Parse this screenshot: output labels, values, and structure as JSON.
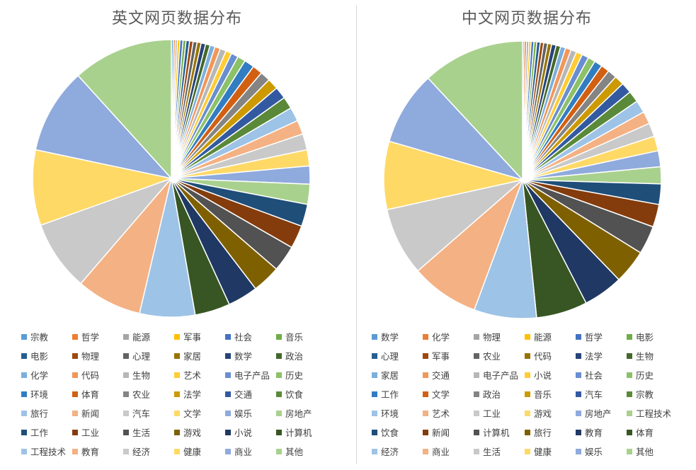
{
  "chart_data": [
    {
      "type": "pie",
      "title": "英文网页数据分布",
      "slices": [
        {
          "label": "宗教",
          "value": 0.2,
          "color": "#5B9BD5"
        },
        {
          "label": "哲学",
          "value": 0.2,
          "color": "#ED7D31"
        },
        {
          "label": "能源",
          "value": 0.2,
          "color": "#A5A5A5"
        },
        {
          "label": "军事",
          "value": 0.25,
          "color": "#FFC000"
        },
        {
          "label": "社会",
          "value": 0.3,
          "color": "#4472C4"
        },
        {
          "label": "音乐",
          "value": 0.3,
          "color": "#70AD47"
        },
        {
          "label": "电影",
          "value": 0.35,
          "color": "#255E91"
        },
        {
          "label": "物理",
          "value": 0.35,
          "color": "#9E480E"
        },
        {
          "label": "心理",
          "value": 0.4,
          "color": "#636363"
        },
        {
          "label": "家居",
          "value": 0.4,
          "color": "#997300"
        },
        {
          "label": "数学",
          "value": 0.45,
          "color": "#264478"
        },
        {
          "label": "政治",
          "value": 0.45,
          "color": "#43682B"
        },
        {
          "label": "化学",
          "value": 0.5,
          "color": "#7CAFDD"
        },
        {
          "label": "代码",
          "value": 0.55,
          "color": "#F1975A"
        },
        {
          "label": "生物",
          "value": 0.6,
          "color": "#B7B7B7"
        },
        {
          "label": "艺术",
          "value": 0.6,
          "color": "#FFCD33"
        },
        {
          "label": "电子产品",
          "value": 0.7,
          "color": "#698ED0"
        },
        {
          "label": "历史",
          "value": 0.8,
          "color": "#8CC168"
        },
        {
          "label": "环境",
          "value": 1.0,
          "color": "#327DC2"
        },
        {
          "label": "体育",
          "value": 1.0,
          "color": "#D26012"
        },
        {
          "label": "农业",
          "value": 1.0,
          "color": "#848484"
        },
        {
          "label": "法学",
          "value": 1.1,
          "color": "#CC9A00"
        },
        {
          "label": "交通",
          "value": 1.2,
          "color": "#335AA1"
        },
        {
          "label": "饮食",
          "value": 1.2,
          "color": "#5A8A39"
        },
        {
          "label": "旅行",
          "value": 1.4,
          "color": "#9DC3E6"
        },
        {
          "label": "新闻",
          "value": 1.4,
          "color": "#F4B183"
        },
        {
          "label": "汽车",
          "value": 1.6,
          "color": "#C9C9C9"
        },
        {
          "label": "文学",
          "value": 1.6,
          "color": "#FFD966"
        },
        {
          "label": "娱乐",
          "value": 1.8,
          "color": "#8FAADC"
        },
        {
          "label": "房地产",
          "value": 2.0,
          "color": "#A9D18E"
        },
        {
          "label": "工作",
          "value": 2.2,
          "color": "#1F4E79"
        },
        {
          "label": "工业",
          "value": 2.3,
          "color": "#843C0C"
        },
        {
          "label": "生活",
          "value": 2.6,
          "color": "#525252"
        },
        {
          "label": "游戏",
          "value": 2.8,
          "color": "#7F6000"
        },
        {
          "label": "小说",
          "value": 3.0,
          "color": "#203864"
        },
        {
          "label": "计算机",
          "value": 3.5,
          "color": "#375623"
        },
        {
          "label": "工程技术",
          "value": 5.5,
          "color": "#9DC3E6"
        },
        {
          "label": "教育",
          "value": 6.5,
          "color": "#F4B183"
        },
        {
          "label": "经济",
          "value": 7.0,
          "color": "#C9C9C9"
        },
        {
          "label": "健康",
          "value": 7.5,
          "color": "#FFD966"
        },
        {
          "label": "商业",
          "value": 8.5,
          "color": "#8FAADC"
        },
        {
          "label": "其他",
          "value": 10.0,
          "color": "#A9D18E"
        }
      ]
    },
    {
      "type": "pie",
      "title": "中文网页数据分布",
      "slices": [
        {
          "label": "数学",
          "value": 0.15,
          "color": "#5B9BD5"
        },
        {
          "label": "化学",
          "value": 0.2,
          "color": "#ED7D31"
        },
        {
          "label": "物理",
          "value": 0.2,
          "color": "#A5A5A5"
        },
        {
          "label": "能源",
          "value": 0.2,
          "color": "#FFC000"
        },
        {
          "label": "哲学",
          "value": 0.25,
          "color": "#4472C4"
        },
        {
          "label": "电影",
          "value": 0.25,
          "color": "#70AD47"
        },
        {
          "label": "心理",
          "value": 0.3,
          "color": "#255E91"
        },
        {
          "label": "军事",
          "value": 0.3,
          "color": "#9E480E"
        },
        {
          "label": "农业",
          "value": 0.35,
          "color": "#636363"
        },
        {
          "label": "代码",
          "value": 0.35,
          "color": "#997300"
        },
        {
          "label": "法学",
          "value": 0.4,
          "color": "#264478"
        },
        {
          "label": "生物",
          "value": 0.4,
          "color": "#43682B"
        },
        {
          "label": "家居",
          "value": 0.45,
          "color": "#7CAFDD"
        },
        {
          "label": "交通",
          "value": 0.5,
          "color": "#F1975A"
        },
        {
          "label": "电子产品",
          "value": 0.5,
          "color": "#B7B7B7"
        },
        {
          "label": "小说",
          "value": 0.55,
          "color": "#FFCD33"
        },
        {
          "label": "社会",
          "value": 0.6,
          "color": "#698ED0"
        },
        {
          "label": "历史",
          "value": 0.65,
          "color": "#8CC168"
        },
        {
          "label": "工作",
          "value": 0.7,
          "color": "#327DC2"
        },
        {
          "label": "文学",
          "value": 0.75,
          "color": "#D26012"
        },
        {
          "label": "政治",
          "value": 0.8,
          "color": "#848484"
        },
        {
          "label": "音乐",
          "value": 0.85,
          "color": "#CC9A00"
        },
        {
          "label": "汽车",
          "value": 0.95,
          "color": "#335AA1"
        },
        {
          "label": "宗教",
          "value": 1.0,
          "color": "#5A8A39"
        },
        {
          "label": "环境",
          "value": 1.1,
          "color": "#9DC3E6"
        },
        {
          "label": "艺术",
          "value": 1.1,
          "color": "#F4B183"
        },
        {
          "label": "工业",
          "value": 1.2,
          "color": "#C9C9C9"
        },
        {
          "label": "游戏",
          "value": 1.3,
          "color": "#FFD966"
        },
        {
          "label": "房地产",
          "value": 1.4,
          "color": "#8FAADC"
        },
        {
          "label": "工程技术",
          "value": 1.5,
          "color": "#A9D18E"
        },
        {
          "label": "饮食",
          "value": 1.8,
          "color": "#1F4E79"
        },
        {
          "label": "新闻",
          "value": 2.0,
          "color": "#843C0C"
        },
        {
          "label": "计算机",
          "value": 2.5,
          "color": "#525252"
        },
        {
          "label": "旅行",
          "value": 3.0,
          "color": "#7F6000"
        },
        {
          "label": "教育",
          "value": 3.5,
          "color": "#203864"
        },
        {
          "label": "体育",
          "value": 4.5,
          "color": "#375623"
        },
        {
          "label": "经济",
          "value": 5.5,
          "color": "#9DC3E6"
        },
        {
          "label": "商业",
          "value": 6.0,
          "color": "#F4B183"
        },
        {
          "label": "生活",
          "value": 6.0,
          "color": "#C9C9C9"
        },
        {
          "label": "健康",
          "value": 6.0,
          "color": "#FFD966"
        },
        {
          "label": "娱乐",
          "value": 6.5,
          "color": "#8FAADC"
        },
        {
          "label": "其他",
          "value": 9.0,
          "color": "#A9D18E"
        }
      ]
    }
  ]
}
